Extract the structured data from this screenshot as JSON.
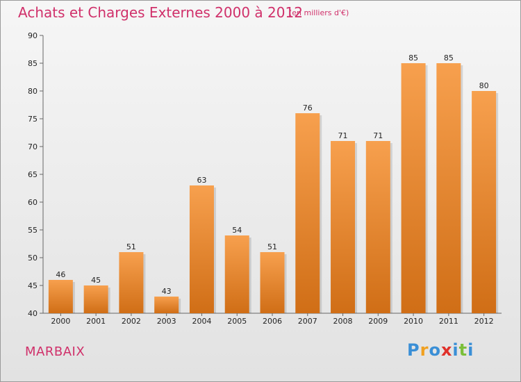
{
  "header": {
    "title": "Achats et Charges Externes 2000 à 2012",
    "subtitle": "(en milliers d'€)"
  },
  "footer": {
    "commune": "MARBAIX",
    "logo": {
      "text": "Proxiti",
      "letters": [
        {
          "char": "P",
          "color": "#3a8fd6"
        },
        {
          "char": "r",
          "color": "#f0a020"
        },
        {
          "char": "o",
          "color": "#3a8fd6"
        },
        {
          "char": "x",
          "color": "#e0302a"
        },
        {
          "char": "i",
          "color": "#3a8fd6"
        },
        {
          "char": "t",
          "color": "#7bbf3a"
        },
        {
          "char": "i",
          "color": "#3a8fd6"
        }
      ]
    }
  },
  "colors": {
    "bar_top": "#f7a04e",
    "bar_bottom": "#d06e16",
    "title": "#d0306a"
  },
  "chart_data": {
    "type": "bar",
    "categories": [
      "2000",
      "2001",
      "2002",
      "2003",
      "2004",
      "2005",
      "2006",
      "2007",
      "2008",
      "2009",
      "2010",
      "2011",
      "2012"
    ],
    "values": [
      46,
      45,
      51,
      43,
      63,
      54,
      51,
      76,
      71,
      71,
      85,
      85,
      80
    ],
    "title": "Achats et Charges Externes 2000 à 2012",
    "subtitle": "(en milliers d'€)",
    "xlabel": "",
    "ylabel": "",
    "ylim": [
      40,
      90
    ],
    "yticks": [
      40,
      45,
      50,
      55,
      60,
      65,
      70,
      75,
      80,
      85,
      90
    ],
    "grid": false,
    "data_labels": true
  }
}
